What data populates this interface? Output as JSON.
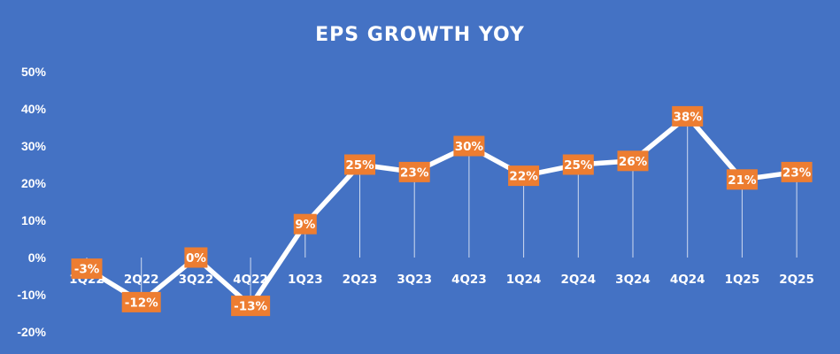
{
  "chart_data": {
    "type": "line",
    "title": "EPS GROWTH YOY",
    "xlabel": "",
    "ylabel": "",
    "categories": [
      "1Q22",
      "2Q22",
      "3Q22",
      "4Q22",
      "1Q23",
      "2Q23",
      "3Q23",
      "4Q23",
      "1Q24",
      "2Q24",
      "3Q24",
      "4Q24",
      "1Q25",
      "2Q25"
    ],
    "values": [
      -3,
      -12,
      0,
      -13,
      9,
      25,
      23,
      30,
      22,
      25,
      26,
      38,
      21,
      23
    ],
    "data_labels": [
      "-3%",
      "-12%",
      "0%",
      "-13%",
      "9%",
      "25%",
      "23%",
      "30%",
      "22%",
      "25%",
      "26%",
      "38%",
      "21%",
      "23%"
    ],
    "yticks": [
      50,
      40,
      30,
      20,
      10,
      0,
      -10,
      -20
    ],
    "ytick_labels": [
      "50%",
      "40%",
      "30%",
      "20%",
      "10%",
      "0%",
      "-10%",
      "-20%"
    ],
    "ylim": [
      -20,
      50
    ],
    "grid": false,
    "drop_lines": true,
    "legend": "none",
    "colors": {
      "background": "#4472C4",
      "line": "#ffffff",
      "label_box": "#ED7D31",
      "text": "#ffffff"
    }
  }
}
